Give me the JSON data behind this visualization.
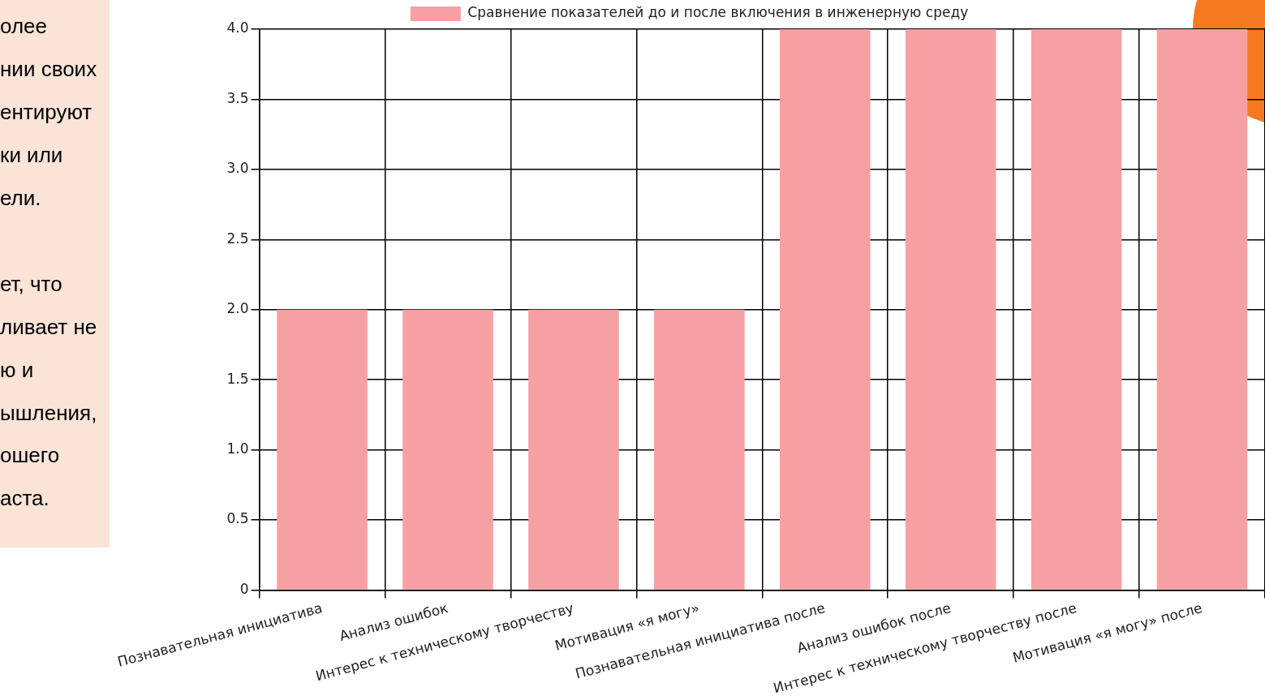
{
  "chart_data": {
    "type": "bar",
    "categories": [
      "Познавательная инициатива",
      "Анализ ошибок",
      "Интерес к техническому творчеству",
      "Мотивация «я могу»",
      "Познавательная инициатива после",
      "Анализ ошибок после",
      "Интерес к техническому творчеству после",
      "Мотивация «я могу» после"
    ],
    "series": [
      {
        "name": "Сравнение показателей до и после включения в инженерную среду",
        "color": "#f7a0a4",
        "values": [
          2,
          2,
          2,
          2,
          4,
          4,
          4,
          4
        ]
      }
    ],
    "ylim": [
      0,
      4
    ],
    "yticks": [
      0,
      {
        "value": 0.5,
        "label": "0.5"
      },
      {
        "value": 1,
        "label": "1.0"
      },
      {
        "value": 1.5,
        "label": "1.5"
      },
      {
        "value": 2,
        "label": "2.0"
      },
      {
        "value": 2.5,
        "label": "2.5"
      },
      {
        "value": 3,
        "label": "3.0"
      },
      {
        "value": 3.5,
        "label": "3.5"
      },
      {
        "value": 4,
        "label": "4.0"
      }
    ],
    "grid": true,
    "legend": "top",
    "annotations": [
      "олее",
      "нии своих",
      "ентируют",
      "ки или",
      "ели.",
      "ет, что",
      "ливает не",
      "ю и",
      "ышления,",
      "ошего",
      "аста."
    ]
  }
}
